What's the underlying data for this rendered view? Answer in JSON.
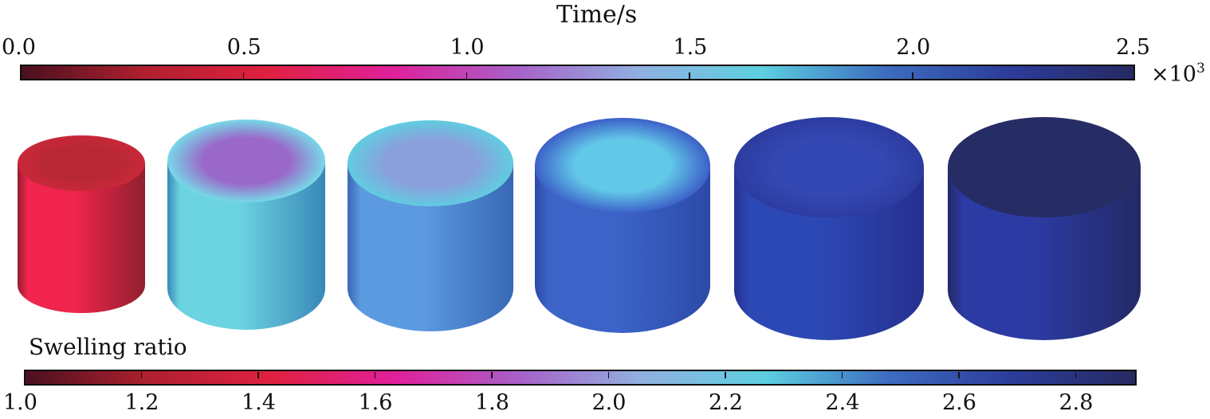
{
  "time_colorbar": {
    "title": "Time/s",
    "ticks": [
      "0.0",
      "0.5",
      "1.0",
      "1.5",
      "2.0",
      "2.5"
    ],
    "multiplier": "×10",
    "multiplier_exp": "3"
  },
  "swelling_colorbar": {
    "title": "Swelling ratio",
    "ticks": [
      "1.0",
      "1.2",
      "1.4",
      "1.6",
      "1.8",
      "2.0",
      "2.2",
      "2.4",
      "2.6",
      "2.8"
    ]
  },
  "colormap_stops": [
    "#4a1020",
    "#b0202e",
    "#e02040",
    "#e0209a",
    "#a860c8",
    "#90b0e0",
    "#5ccfe0",
    "#3c6cc0",
    "#2c3c9a",
    "#262a62"
  ],
  "cylinders": [
    {
      "side_light": "#f0244c",
      "side_dark": "#90202e",
      "top_rim": "#c8283a",
      "top_center": "#b82834"
    },
    {
      "side_light": "#6cd4e0",
      "side_dark": "#3888b8",
      "top_rim": "#78d8e8",
      "top_center": "#9a68c8"
    },
    {
      "side_light": "#5c9ae0",
      "side_dark": "#3868b4",
      "top_rim": "#60cce0",
      "top_center": "#8aa0dc"
    },
    {
      "side_light": "#3c64c8",
      "side_dark": "#2c4aa8",
      "top_rim": "#3c60c8",
      "top_center": "#62c8e8"
    },
    {
      "side_light": "#2c48b4",
      "side_dark": "#263090",
      "top_rim": "#2c3ca0",
      "top_center": "#3448b4"
    },
    {
      "side_light": "#2c3aa4",
      "side_dark": "#242a66",
      "top_rim": "#262c64",
      "top_center": "#262c64"
    }
  ]
}
